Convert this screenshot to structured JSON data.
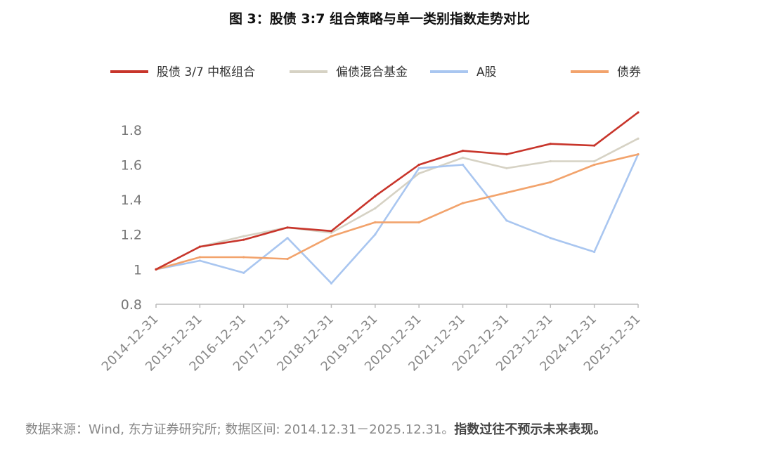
{
  "chart_data": {
    "type": "line",
    "title": "图 3：股债 3:7 组合策略与单一类别指数走势对比",
    "x": [
      "2014-12-31",
      "2015-12-31",
      "2016-12-31",
      "2017-12-31",
      "2018-12-31",
      "2019-12-31",
      "2020-12-31",
      "2021-12-31",
      "2022-12-31",
      "2023-12-31",
      "2024-12-31",
      "2025-12-31"
    ],
    "xlabel": "",
    "ylabel": "",
    "ylim": [
      0.8,
      1.9
    ],
    "yticks": [
      "0.8",
      "1",
      "1.2",
      "1.4",
      "1.6",
      "1.8"
    ],
    "legend_position": "top",
    "series": [
      {
        "name": "股债 3/7 中枢组合",
        "color": "#c8352b",
        "values": [
          1.0,
          1.13,
          1.17,
          1.24,
          1.22,
          1.42,
          1.6,
          1.68,
          1.66,
          1.72,
          1.71,
          1.9
        ]
      },
      {
        "name": "偏债混合基金",
        "color": "#d6d2c4",
        "values": [
          1.0,
          1.13,
          1.19,
          1.24,
          1.21,
          1.35,
          1.55,
          1.64,
          1.58,
          1.62,
          1.62,
          1.75
        ]
      },
      {
        "name": "A股",
        "color": "#a9c6f0",
        "values": [
          1.0,
          1.05,
          0.98,
          1.18,
          0.92,
          1.2,
          1.58,
          1.6,
          1.28,
          1.18,
          1.1,
          1.66
        ]
      },
      {
        "name": "债券",
        "color": "#f2a36c",
        "values": [
          1.0,
          1.07,
          1.07,
          1.06,
          1.19,
          1.27,
          1.27,
          1.38,
          1.44,
          1.5,
          1.6,
          1.66
        ]
      }
    ]
  },
  "source_text": "数据来源：Wind, 东方证券研究所; 数据区间: 2014.12.31－2025.12.31。",
  "disclaimer_text": "指数过往不预示未来表现。"
}
